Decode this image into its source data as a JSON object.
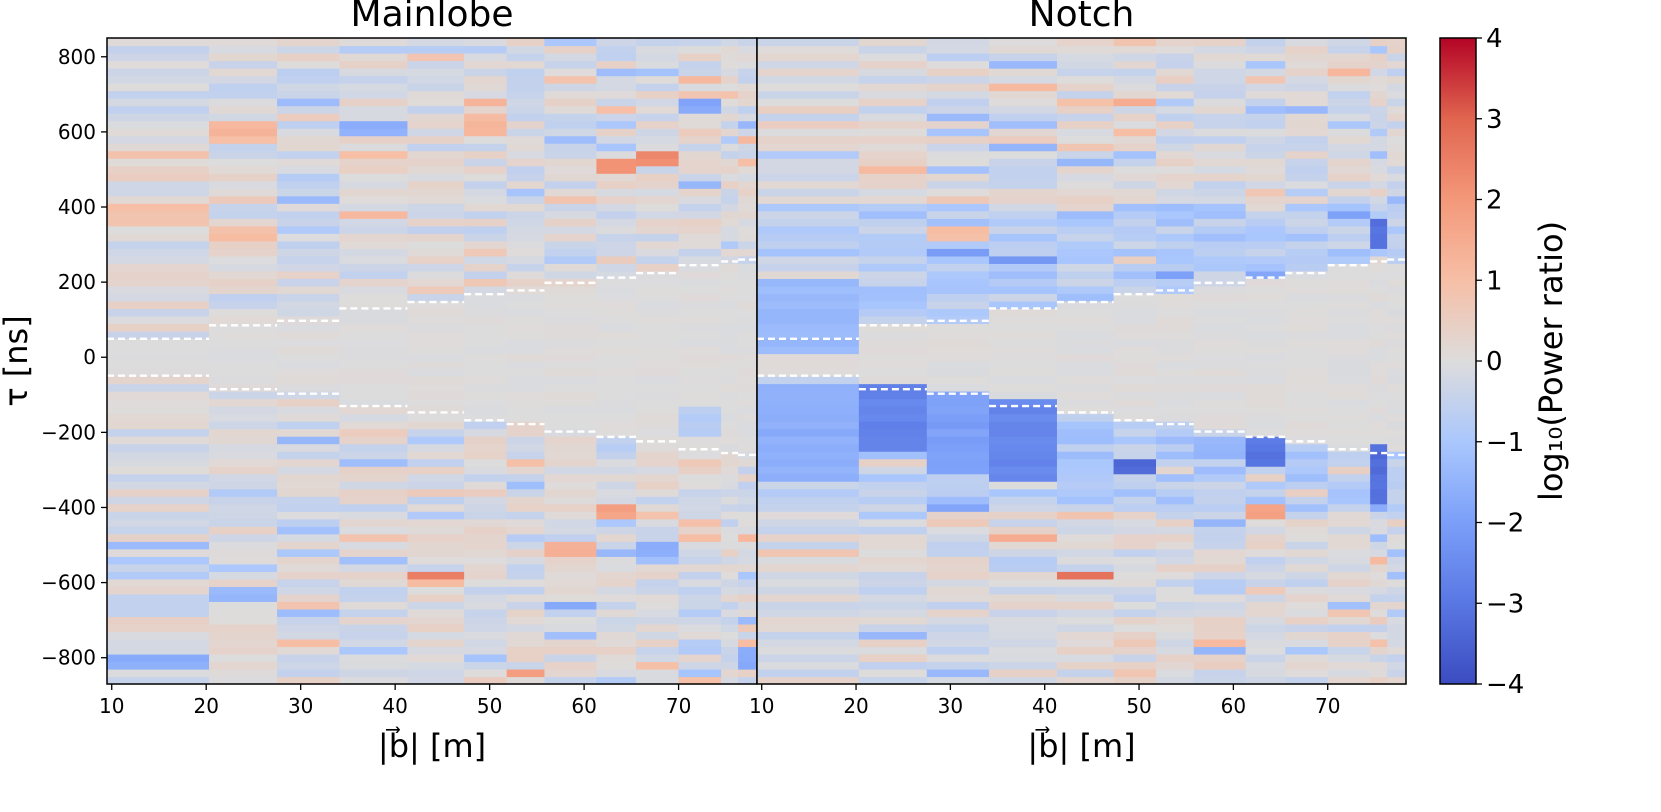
{
  "chart_data": {
    "type": "heatmap",
    "colormap": "coolwarm",
    "ylabel": "τ [ns]",
    "ylim": [
      -870,
      850
    ],
    "yticks": [
      800,
      600,
      400,
      200,
      0,
      -200,
      -400,
      -600,
      -800
    ],
    "ytick_labels": [
      "800",
      "600",
      "400",
      "200",
      "0",
      "−200",
      "−400",
      "−600",
      "−800"
    ],
    "colorbar": {
      "label": "log₁₀(Power ratio)",
      "range": [
        -4,
        4
      ],
      "ticks": [
        4,
        3,
        2,
        1,
        0,
        -1,
        -2,
        -3,
        -4
      ],
      "tick_labels": [
        "4",
        "3",
        "2",
        "1",
        "0",
        "−1",
        "−2",
        "−3",
        "−4"
      ]
    },
    "baseline_bins_m": [
      9.5,
      20.3,
      27.5,
      34.1,
      41.3,
      47.3,
      51.8,
      55.8,
      61.3,
      65.5,
      70.0,
      74.5,
      76.3,
      78.3
    ],
    "horizon_delay_ns": [
      49,
      85,
      97,
      130,
      147,
      168,
      178,
      198,
      212,
      224,
      245,
      255,
      260
    ],
    "panels": [
      {
        "title": "Mainlobe",
        "xlabel": "|b⃗| [m]",
        "xlim": [
          9.5,
          78.3
        ],
        "xticks": [
          10,
          20,
          30,
          40,
          50,
          60,
          70
        ],
        "features": [
          {
            "baseline": [
              9.5,
              20.3
            ],
            "tau": [
              360,
              410
            ],
            "value": 0.9
          },
          {
            "baseline": [
              9.5,
              20.3
            ],
            "tau": [
              -820,
              -795
            ],
            "value": -1.6
          },
          {
            "baseline": [
              9.5,
              20.3
            ],
            "tau": [
              -720,
              -700
            ],
            "value": 0.5
          },
          {
            "baseline": [
              20.3,
              27.5
            ],
            "tau": [
              600,
              620
            ],
            "value": 1.3
          },
          {
            "baseline": [
              20.3,
              27.5
            ],
            "tau": [
              -640,
              -615
            ],
            "value": -1.3
          },
          {
            "baseline": [
              27.5,
              34.1
            ],
            "tau": [
              -775,
              -750
            ],
            "value": 1.1
          },
          {
            "baseline": [
              34.1,
              41.3
            ],
            "tau": [
              600,
              620
            ],
            "value": -1.6
          },
          {
            "baseline": [
              34.1,
              41.3
            ],
            "tau": [
              -490,
              -465
            ],
            "value": 0.8
          },
          {
            "baseline": [
              41.3,
              47.3
            ],
            "tau": [
              -595,
              -570
            ],
            "value": 2.6
          },
          {
            "baseline": [
              47.3,
              51.8
            ],
            "tau": [
              600,
              620
            ],
            "value": 1.2
          },
          {
            "baseline": [
              47.3,
              51.8
            ],
            "tau": [
              675,
              695
            ],
            "value": 1.3
          },
          {
            "baseline": [
              51.8,
              55.8
            ],
            "tau": [
              -850,
              -825
            ],
            "value": 2.0
          },
          {
            "baseline": [
              55.8,
              61.3
            ],
            "tau": [
              -670,
              -645
            ],
            "value": -1.8
          },
          {
            "baseline": [
              55.8,
              61.3
            ],
            "tau": [
              -520,
              -495
            ],
            "value": 1.3
          },
          {
            "baseline": [
              61.3,
              65.5
            ],
            "tau": [
              500,
              520
            ],
            "value": 2.0
          },
          {
            "baseline": [
              61.3,
              65.5
            ],
            "tau": [
              -420,
              -395
            ],
            "value": 1.7
          },
          {
            "baseline": [
              65.5,
              70.0
            ],
            "tau": [
              520,
              540
            ],
            "value": 2.3
          },
          {
            "baseline": [
              65.5,
              70.0
            ],
            "tau": [
              -520,
              -500
            ],
            "value": -1.7
          },
          {
            "baseline": [
              70.0,
              74.5
            ],
            "tau": [
              660,
              680
            ],
            "value": -1.8
          },
          {
            "baseline": [
              70.0,
              74.5
            ],
            "tau": [
              -200,
              -140
            ],
            "value": -0.7
          },
          {
            "baseline": [
              76.3,
              78.3
            ],
            "tau": [
              -820,
              -780
            ],
            "value": -1.8
          }
        ]
      },
      {
        "title": "Notch",
        "xlabel": "|b⃗| [m]",
        "xlim": [
          9.5,
          78.3
        ],
        "xticks": [
          10,
          20,
          30,
          40,
          50,
          60,
          70
        ],
        "features": [
          {
            "baseline": [
              9.5,
              20.3
            ],
            "tau": [
              20,
              200
            ],
            "value": -1.3
          },
          {
            "baseline": [
              9.5,
              20.3
            ],
            "tau": [
              -330,
              -80
            ],
            "value": -1.6
          },
          {
            "baseline": [
              20.3,
              27.5
            ],
            "tau": [
              -240,
              -80
            ],
            "value": -2.7
          },
          {
            "baseline": [
              27.5,
              34.1
            ],
            "tau": [
              320,
              345
            ],
            "value": 1.1
          },
          {
            "baseline": [
              27.5,
              34.1
            ],
            "tau": [
              -300,
              -90
            ],
            "value": -2.0
          },
          {
            "baseline": [
              34.1,
              41.3
            ],
            "tau": [
              -320,
              -110
            ],
            "value": -2.6
          },
          {
            "baseline": [
              34.1,
              41.3
            ],
            "tau": [
              -490,
              -470
            ],
            "value": 1.4
          },
          {
            "baseline": [
              41.3,
              47.3
            ],
            "tau": [
              -595,
              -570
            ],
            "value": 2.6
          },
          {
            "baseline": [
              47.3,
              51.8
            ],
            "tau": [
              -300,
              -270
            ],
            "value": -3.4
          },
          {
            "baseline": [
              47.3,
              51.8
            ],
            "tau": [
              675,
              695
            ],
            "value": 1.4
          },
          {
            "baseline": [
              61.3,
              65.5
            ],
            "tau": [
              -290,
              -220
            ],
            "value": -3.0
          },
          {
            "baseline": [
              61.3,
              65.5
            ],
            "tau": [
              -420,
              -395
            ],
            "value": 1.7
          },
          {
            "baseline": [
              74.5,
              76.3
            ],
            "tau": [
              300,
              370
            ],
            "value": -3.1
          },
          {
            "baseline": [
              74.5,
              76.3
            ],
            "tau": [
              -390,
              -230
            ],
            "value": -3.2
          }
        ]
      }
    ]
  }
}
